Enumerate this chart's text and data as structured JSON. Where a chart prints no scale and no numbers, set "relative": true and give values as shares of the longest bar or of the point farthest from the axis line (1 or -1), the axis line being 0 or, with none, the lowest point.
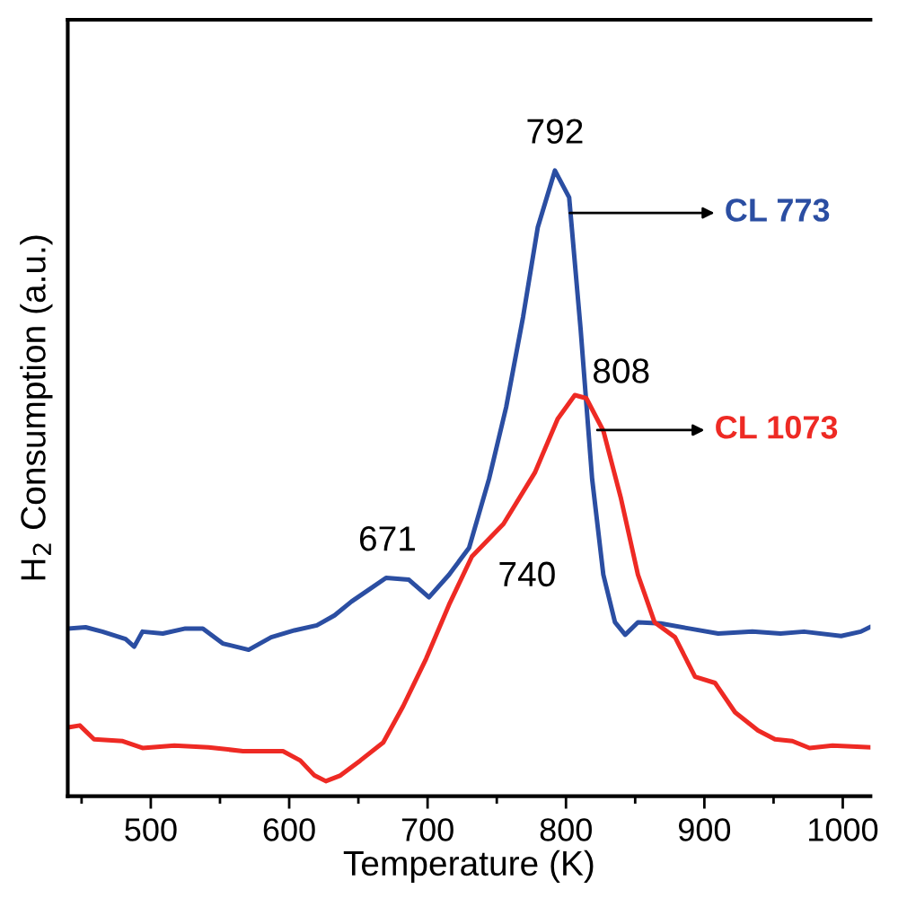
{
  "chart_data": {
    "type": "line",
    "relative": true,
    "xlabel": "Temperature (K)",
    "ylabel": "H$_{2}$ Consumption (a.u.)",
    "xlim": [
      440,
      1020
    ],
    "xticks": [
      {
        "value": 450,
        "label": null
      },
      500,
      {
        "value": 550,
        "label": null
      },
      600,
      {
        "value": 650,
        "label": null
      },
      700,
      {
        "value": 750,
        "label": null
      },
      800,
      {
        "value": 850,
        "label": null
      },
      900,
      {
        "value": 950,
        "label": null
      },
      1000
    ],
    "grid": false,
    "legend": false,
    "marker": "none",
    "line_style": "solid",
    "tick_labels": "x",
    "series": [
      {
        "name": "CL 773",
        "color": "#2b4ea2",
        "x": [
          440.4,
          452.9,
          465,
          481.8,
          488,
          494,
          508.7,
          525,
          537.6,
          552,
          570.7,
          587,
          603.8,
          620,
          632.8,
          645,
          657.6,
          670,
          686.5,
          701,
          715.5,
          730,
          744.4,
          756.8,
          769,
          779.6,
          792,
          802.3,
          810.6,
          818.9,
          827,
          835.4,
          842.8,
          852,
          868.5,
          889,
          910,
          934.7,
          955,
          972,
          998.8,
          1013,
          1019.4
        ],
        "values": [
          0.268,
          0.27,
          0.263,
          0.251,
          0.239,
          0.263,
          0.26,
          0.268,
          0.268,
          0.244,
          0.234,
          0.254,
          0.265,
          0.273,
          0.289,
          0.311,
          0.33,
          0.349,
          0.346,
          0.318,
          0.354,
          0.397,
          0.507,
          0.622,
          0.766,
          0.909,
          1.0,
          0.957,
          0.746,
          0.507,
          0.354,
          0.278,
          0.258,
          0.278,
          0.276,
          0.268,
          0.26,
          0.263,
          0.26,
          0.263,
          0.256,
          0.263,
          0.27
        ]
      },
      {
        "name": "CL 1073",
        "color": "#ee2a24",
        "x": [
          440.4,
          448.7,
          459,
          479.7,
          494,
          517,
          541.8,
          566.6,
          595.5,
          608,
          618.3,
          626.5,
          637,
          651.4,
          668,
          682.4,
          699,
          715.5,
          732,
          754.8,
          777.5,
          794,
          806.4,
          814.7,
          827,
          839.5,
          852,
          864,
          878.8,
          893.3,
          907.7,
          922.2,
          938.8,
          951,
          963.6,
          976,
          992.6,
          1019.4
        ],
        "values": [
          0.11,
          0.113,
          0.091,
          0.088,
          0.077,
          0.081,
          0.078,
          0.072,
          0.072,
          0.057,
          0.033,
          0.024,
          0.033,
          0.057,
          0.086,
          0.144,
          0.22,
          0.306,
          0.383,
          0.435,
          0.517,
          0.603,
          0.641,
          0.636,
          0.584,
          0.478,
          0.354,
          0.278,
          0.254,
          0.191,
          0.181,
          0.134,
          0.105,
          0.091,
          0.088,
          0.077,
          0.081,
          0.078
        ]
      }
    ],
    "annotations": [
      {
        "text": "792",
        "x": 792,
        "y": 1.0
      },
      {
        "text": "808",
        "x": 808,
        "y": 0.641
      },
      {
        "text": "671",
        "x": 671,
        "y": 0.349
      },
      {
        "text": "740",
        "x": 740,
        "y": 0.4
      }
    ]
  }
}
